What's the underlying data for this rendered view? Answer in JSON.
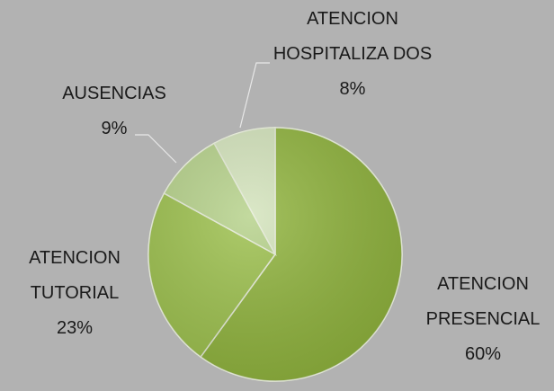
{
  "chart_data": {
    "type": "pie",
    "categories": [
      "ATENCION PRESENCIAL",
      "ATENCION TUTORIAL",
      "AUSENCIAS",
      "ATENCION HOSPITALIZA DOS"
    ],
    "values": [
      60,
      23,
      9,
      8
    ],
    "value_labels": [
      "60%",
      "23%",
      "9%",
      "8%"
    ],
    "colors": [
      "#8fb33c",
      "#9cc04c",
      "#b5d189",
      "#d3e3bb"
    ]
  }
}
